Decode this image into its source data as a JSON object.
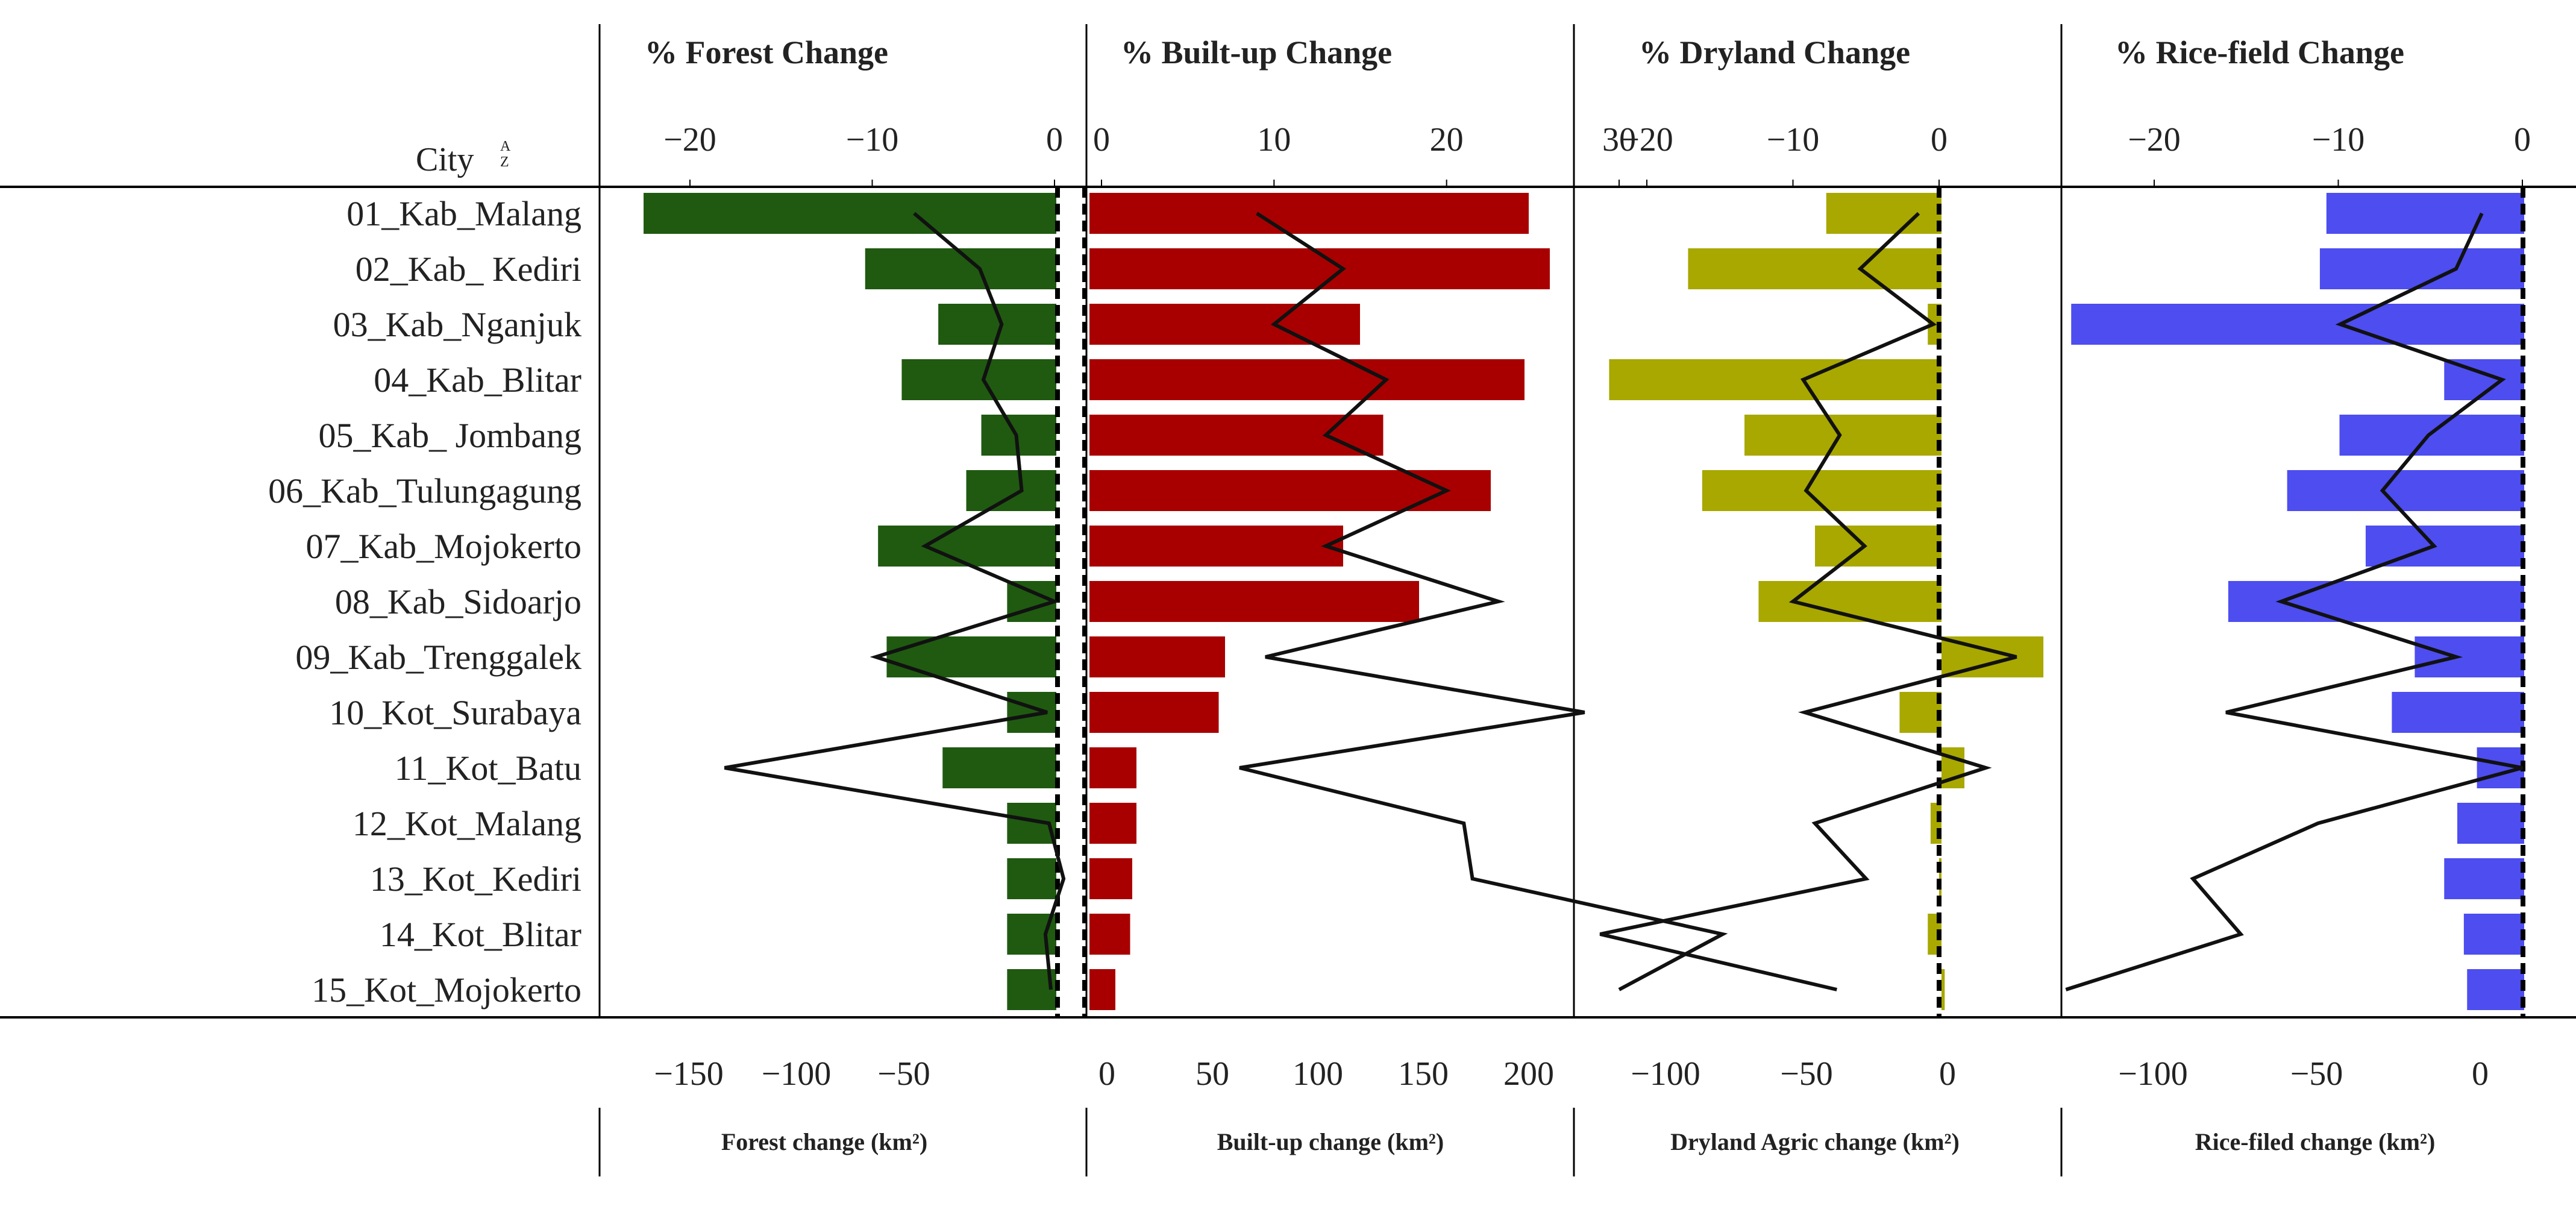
{
  "city_header": "City",
  "sort_icon": "sort-az-icon",
  "cities": [
    "01_Kab_Malang",
    "02_Kab_ Kediri",
    "03_Kab_Nganjuk",
    "04_Kab_Blitar",
    "05_Kab_ Jombang",
    "06_Kab_Tulungagung",
    "07_Kab_Mojokerto",
    "08_Kab_Sidoarjo",
    "09_Kab_Trenggalek",
    "10_Kot_Surabaya",
    "11_Kot_Batu",
    "12_Kot_Malang",
    "13_Kot_Kediri",
    "14_Kot_Blitar",
    "15_Kot_Mojokerto"
  ],
  "panels": [
    {
      "id": "forest",
      "title": "% Forest Change",
      "xlabel": "Forest change (km²)",
      "color": "#1f5a10",
      "pct_ticks": [
        -20,
        -10,
        0
      ],
      "pct_tick_labels": [
        "−20",
        "−10",
        "0"
      ],
      "km_ticks": [
        -150,
        -100,
        -50
      ],
      "km_tick_labels": [
        "−150",
        "−100",
        "−50"
      ]
    },
    {
      "id": "builtup",
      "title": "% Built-up Change",
      "xlabel": "Built-up change (km²)",
      "color": "#a80000",
      "pct_ticks": [
        0,
        10,
        20,
        30
      ],
      "pct_tick_labels": [
        "0",
        "10",
        "20",
        "30"
      ],
      "km_ticks": [
        0,
        50,
        100,
        150,
        200
      ],
      "km_tick_labels": [
        "0",
        "50",
        "100",
        "150",
        "200"
      ]
    },
    {
      "id": "dryland",
      "title": "% Dryland Change",
      "xlabel": "Dryland Agric change (km²)",
      "color": "#a8a800",
      "pct_ticks": [
        -20,
        -10,
        0
      ],
      "pct_tick_labels": [
        "−20",
        "−10",
        "0"
      ],
      "km_ticks": [
        -100,
        -50,
        0
      ],
      "km_tick_labels": [
        "−100",
        "−50",
        "0"
      ]
    },
    {
      "id": "rice",
      "title": "% Rice-field Change",
      "xlabel": "Rice-filed change (km²)",
      "color": "#4d4df0",
      "pct_ticks": [
        -20,
        -10,
        0
      ],
      "pct_tick_labels": [
        "−20",
        "−10",
        "0"
      ],
      "km_ticks": [
        -100,
        -50,
        0
      ],
      "km_tick_labels": [
        "−100",
        "−50",
        "0"
      ]
    }
  ],
  "chart_data": {
    "type": "bar",
    "orientation": "horizontal",
    "categories": [
      "01_Kab_Malang",
      "02_Kab_ Kediri",
      "03_Kab_Nganjuk",
      "04_Kab_Blitar",
      "05_Kab_ Jombang",
      "06_Kab_Tulungagung",
      "07_Kab_Mojokerto",
      "08_Kab_Sidoarjo",
      "09_Kab_Trenggalek",
      "10_Kot_Surabaya",
      "11_Kot_Batu",
      "12_Kot_Malang",
      "13_Kot_Kediri",
      "14_Kot_Blitar",
      "15_Kot_Mojokerto"
    ],
    "panels": [
      {
        "name": "Forest",
        "bar_axis": "Forest change (km²)",
        "bar_xlim": [
          -175,
          0
        ],
        "bar_values": [
          -171,
          -68,
          -34,
          -51,
          -14,
          -21,
          -62,
          -2,
          -58,
          -2,
          -32,
          -2,
          -2,
          -2,
          -2
        ],
        "line_axis": "% Forest Change",
        "line_xlim": [
          -25,
          0
        ],
        "line_values": [
          -7.7,
          -4.1,
          -2.9,
          -3.9,
          -2.1,
          -1.8,
          -7.1,
          0,
          -9.8,
          -0.4,
          -18.1,
          -0.3,
          0.5,
          -0.5,
          -0.2
        ]
      },
      {
        "name": "Built-up",
        "bar_axis": "Built-up change (km²)",
        "bar_xlim": [
          0,
          215
        ],
        "bar_values": [
          200,
          210,
          120,
          198,
          131,
          182,
          112,
          148,
          56,
          53,
          14,
          14,
          12,
          11,
          4
        ],
        "line_axis": "% Built-up Change",
        "line_xlim": [
          0,
          35
        ],
        "line_values": [
          9,
          14,
          10,
          16.5,
          13,
          20,
          13,
          23,
          9.5,
          28,
          8,
          21,
          21.5,
          36,
          30
        ]
      },
      {
        "name": "Dryland Agric",
        "bar_axis": "Dryland Agric change (km²)",
        "bar_xlim": [
          -125,
          35
        ],
        "bar_values": [
          -43,
          -92,
          -7,
          -120,
          -72,
          -87,
          -47,
          -67,
          34,
          -17,
          6,
          -6,
          -3,
          -7,
          -1
        ],
        "line_axis": "% Dryland Change",
        "line_xlim": [
          -24,
          5.3
        ],
        "line_values": [
          -1.4,
          -5.4,
          -0.4,
          -9.3,
          -6.8,
          -9.1,
          -5.1,
          -10,
          5.3,
          -9.2,
          3.2,
          -8.5,
          -5,
          -23.2,
          -7
        ]
      },
      {
        "name": "Rice-field",
        "bar_axis": "Rice-filed change (km²)",
        "bar_xlim": [
          -132,
          0
        ],
        "bar_values": [
          -47,
          -49,
          -125,
          -11,
          -43,
          -59,
          -35,
          -77,
          -20,
          -27,
          -1,
          -7,
          -11,
          -5,
          -4
        ],
        "line_axis": "% Rice-field Change",
        "line_xlim": [
          -25,
          0
        ],
        "line_values": [
          -2.2,
          -3.6,
          -9.9,
          -1.1,
          -5.1,
          -7.6,
          -4.8,
          -13.1,
          -3.6,
          -16.1,
          0,
          -11.1,
          -17.9,
          -15.3,
          -24.8
        ]
      }
    ],
    "zero_line": "dashed black at 0"
  }
}
